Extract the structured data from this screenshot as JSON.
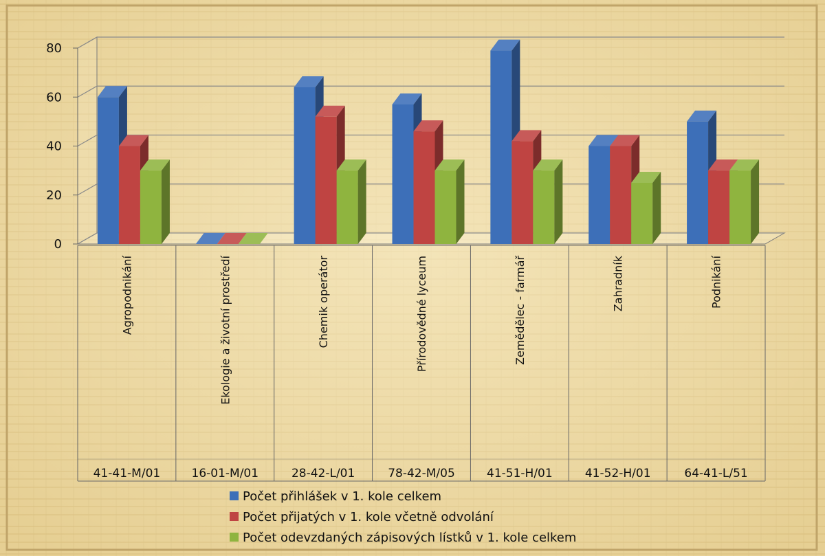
{
  "chart_data": {
    "type": "bar",
    "style": "3d-clustered-column",
    "categories": [
      [
        "Agropodnikání",
        "41-41-M/01"
      ],
      [
        "Ekologie a životní prostředí",
        "16-01-M/01"
      ],
      [
        "Chemik operátor",
        "28-42-L/01"
      ],
      [
        "Přírodovědné lyceum",
        "78-42-M/05"
      ],
      [
        "Zemědělec - farmář",
        "41-51-H/01"
      ],
      [
        "Zahradník",
        "41-52-H/01"
      ],
      [
        "Podnikání",
        "64-41-L/51"
      ]
    ],
    "series": [
      {
        "name": "Počet přihlášek v 1. kole celkem",
        "values": [
          60,
          0,
          64,
          57,
          79,
          40,
          50
        ],
        "color": "#3d6fb8"
      },
      {
        "name": "Počet přijatých v 1. kole včetně odvolání",
        "values": [
          40,
          0,
          52,
          46,
          42,
          40,
          30
        ],
        "color": "#bf4442"
      },
      {
        "name": "Počet odevzdaných zápisových lístků v 1. kole celkem",
        "values": [
          30,
          0,
          30,
          30,
          30,
          25,
          30
        ],
        "color": "#8fb43f"
      }
    ],
    "ylim": [
      0,
      80
    ],
    "yticks": [
      0,
      20,
      40,
      60,
      80
    ],
    "grid": true,
    "legend": "bottom"
  }
}
